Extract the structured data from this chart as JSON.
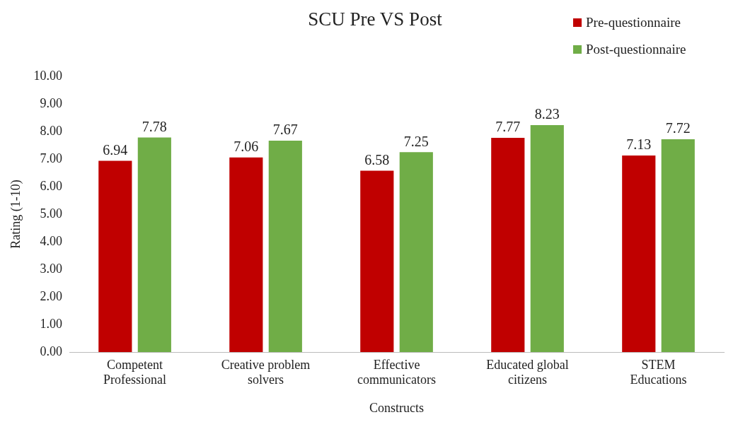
{
  "chart_data": {
    "type": "bar",
    "title": "SCU Pre VS Post",
    "xlabel": "Constructs",
    "ylabel": "Rating (1-10)",
    "categories": [
      "Competent\nProfessional",
      "Creative problem\nsolvers",
      "Effective\ncommunicators",
      "Educated global\ncitizens",
      "STEM\nEducations"
    ],
    "series": [
      {
        "name": "Pre-questionnaire",
        "color": "#c00000",
        "values": [
          6.94,
          7.06,
          6.58,
          7.77,
          7.13
        ]
      },
      {
        "name": "Post-questionnaire",
        "color": "#70ad47",
        "values": [
          7.78,
          7.67,
          7.25,
          8.23,
          7.72
        ]
      }
    ],
    "ylim": [
      0,
      10
    ],
    "yticks": [
      {
        "value": 0,
        "label": "0.00"
      },
      {
        "value": 1,
        "label": "1.00"
      },
      {
        "value": 2,
        "label": "2.00"
      },
      {
        "value": 3,
        "label": "3.00"
      },
      {
        "value": 4,
        "label": "4.00"
      },
      {
        "value": 5,
        "label": "5.00"
      },
      {
        "value": 6,
        "label": "6.00"
      },
      {
        "value": 7,
        "label": "7.00"
      },
      {
        "value": 8,
        "label": "8.00"
      },
      {
        "value": 9,
        "label": "9.00"
      },
      {
        "value": 10,
        "label": "10.00"
      }
    ],
    "data_labels": true,
    "grid": false,
    "legend": "top right"
  }
}
